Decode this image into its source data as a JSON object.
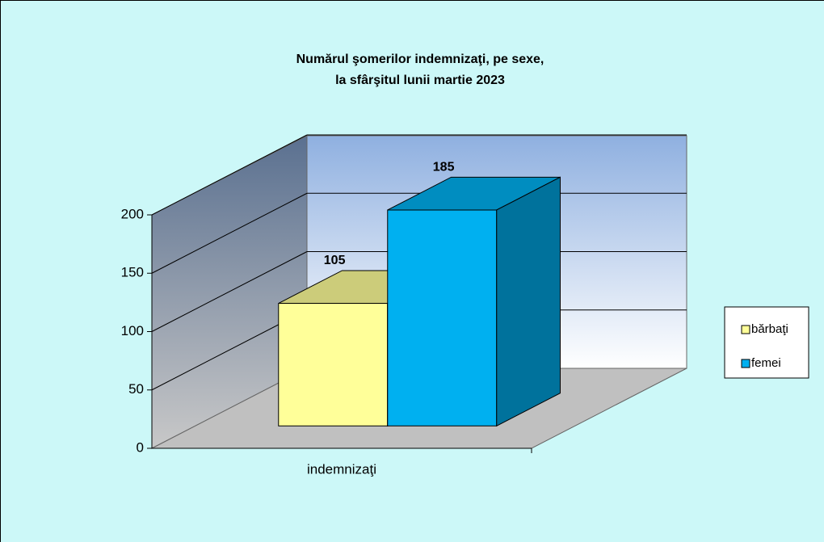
{
  "chart_data": {
    "type": "bar3d",
    "title": [
      "Numărul şomerilor  indemnizaţi,  pe sexe,",
      "la sfârşitul  lunii  martie 2023"
    ],
    "categories": [
      "indemnizaţi"
    ],
    "series": [
      {
        "name": "bărbaţi",
        "color": "#ffff99",
        "values": [
          105
        ]
      },
      {
        "name": "femei",
        "color": "#00b0f0",
        "values": [
          185
        ]
      }
    ],
    "ylim": [
      0,
      200
    ],
    "yticks": [
      0,
      50,
      100,
      150,
      200
    ],
    "grid": true,
    "legend": "right"
  }
}
